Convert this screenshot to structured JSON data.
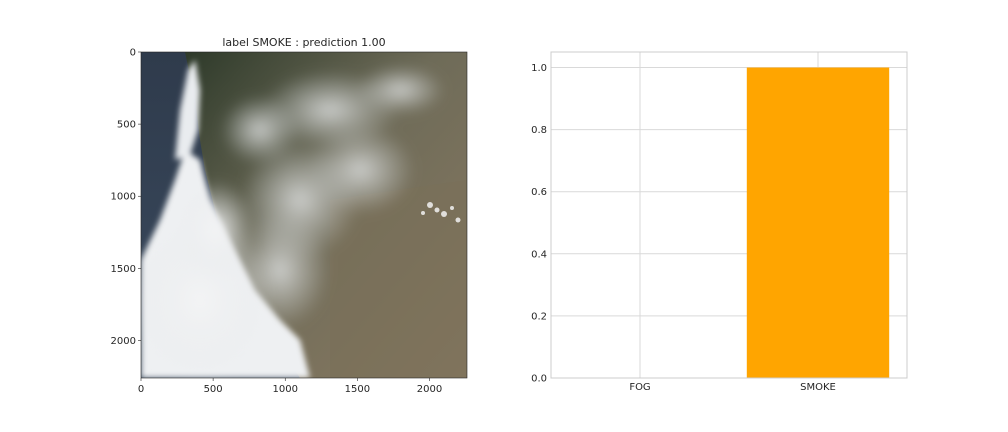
{
  "chart_data": [
    {
      "type": "image",
      "title": "label  SMOKE : prediction 1.00",
      "xlim": [
        0,
        2260
      ],
      "ylim": [
        2260,
        0
      ],
      "xticks": [
        0,
        500,
        1000,
        1500,
        2000
      ],
      "yticks": [
        0,
        500,
        1000,
        1500,
        2000
      ],
      "grid": false
    },
    {
      "type": "bar",
      "categories": [
        "FOG",
        "SMOKE"
      ],
      "values": [
        0.0,
        1.0
      ],
      "ylim": [
        0,
        1.05
      ],
      "yticks": [
        0.0,
        0.2,
        0.4,
        0.6,
        0.8,
        1.0
      ],
      "bar_color": "#ffa500",
      "grid": true
    }
  ]
}
